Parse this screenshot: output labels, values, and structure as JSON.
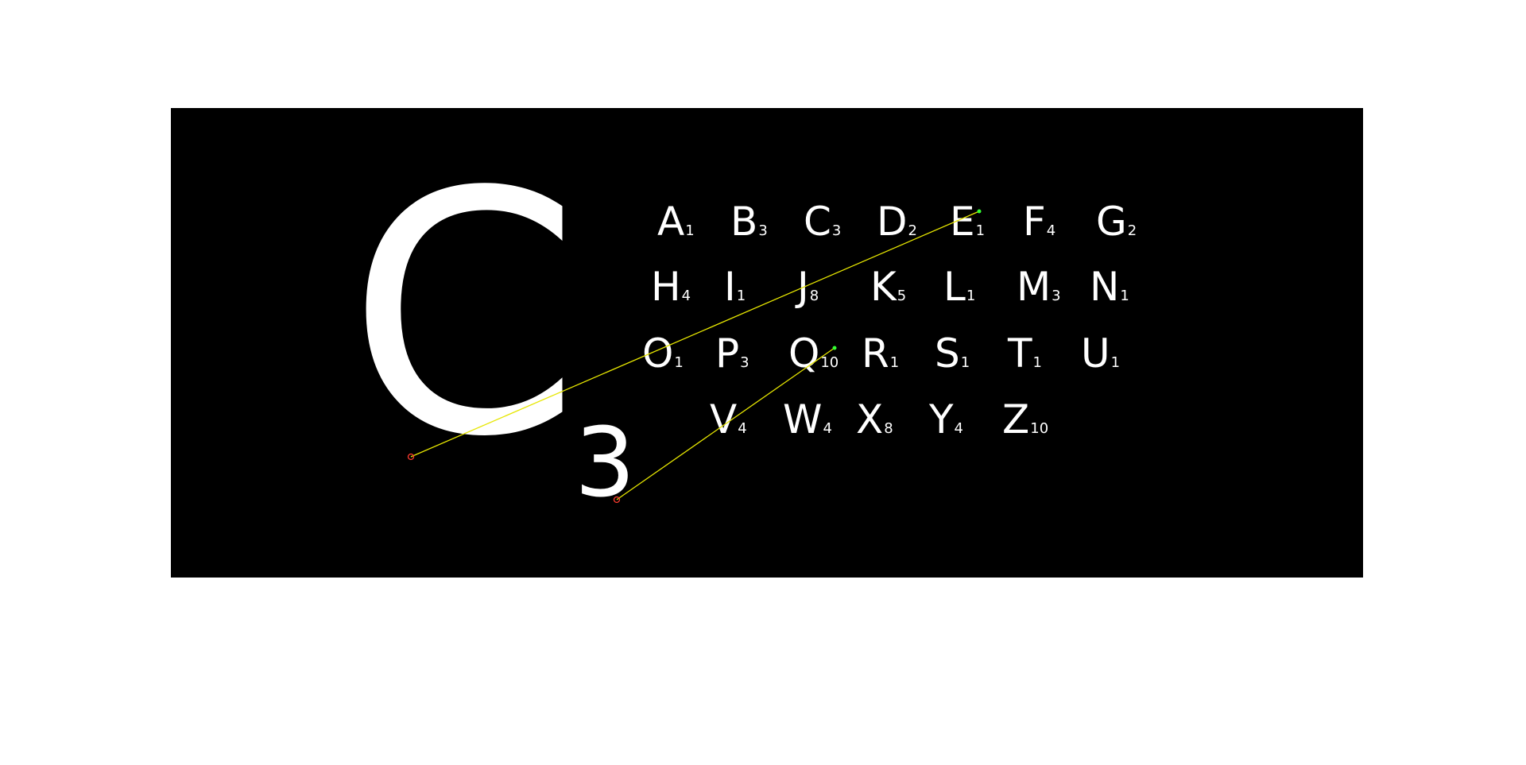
{
  "colors": {
    "background": "#000000",
    "page": "#ffffff",
    "glyph": "#ffffff",
    "match_line": "#e6e600",
    "keypoint_query": "#ff3b30",
    "keypoint_target": "#33ff33"
  },
  "query": {
    "letter": "C",
    "value": "3"
  },
  "tiles": [
    {
      "letter": "A",
      "value": "1"
    },
    {
      "letter": "B",
      "value": "3"
    },
    {
      "letter": "C",
      "value": "3"
    },
    {
      "letter": "D",
      "value": "2"
    },
    {
      "letter": "E",
      "value": "1"
    },
    {
      "letter": "F",
      "value": "4"
    },
    {
      "letter": "G",
      "value": "2"
    },
    {
      "letter": "H",
      "value": "4"
    },
    {
      "letter": "I",
      "value": "1"
    },
    {
      "letter": "J",
      "value": "8"
    },
    {
      "letter": "K",
      "value": "5"
    },
    {
      "letter": "L",
      "value": "1"
    },
    {
      "letter": "M",
      "value": "3"
    },
    {
      "letter": "N",
      "value": "1"
    },
    {
      "letter": "O",
      "value": "1"
    },
    {
      "letter": "P",
      "value": "3"
    },
    {
      "letter": "Q",
      "value": "10"
    },
    {
      "letter": "R",
      "value": "1"
    },
    {
      "letter": "S",
      "value": "1"
    },
    {
      "letter": "T",
      "value": "1"
    },
    {
      "letter": "U",
      "value": "1"
    },
    {
      "letter": "V",
      "value": "4"
    },
    {
      "letter": "W",
      "value": "4"
    },
    {
      "letter": "X",
      "value": "8"
    },
    {
      "letter": "Y",
      "value": "4"
    },
    {
      "letter": "Z",
      "value": "10"
    }
  ]
}
